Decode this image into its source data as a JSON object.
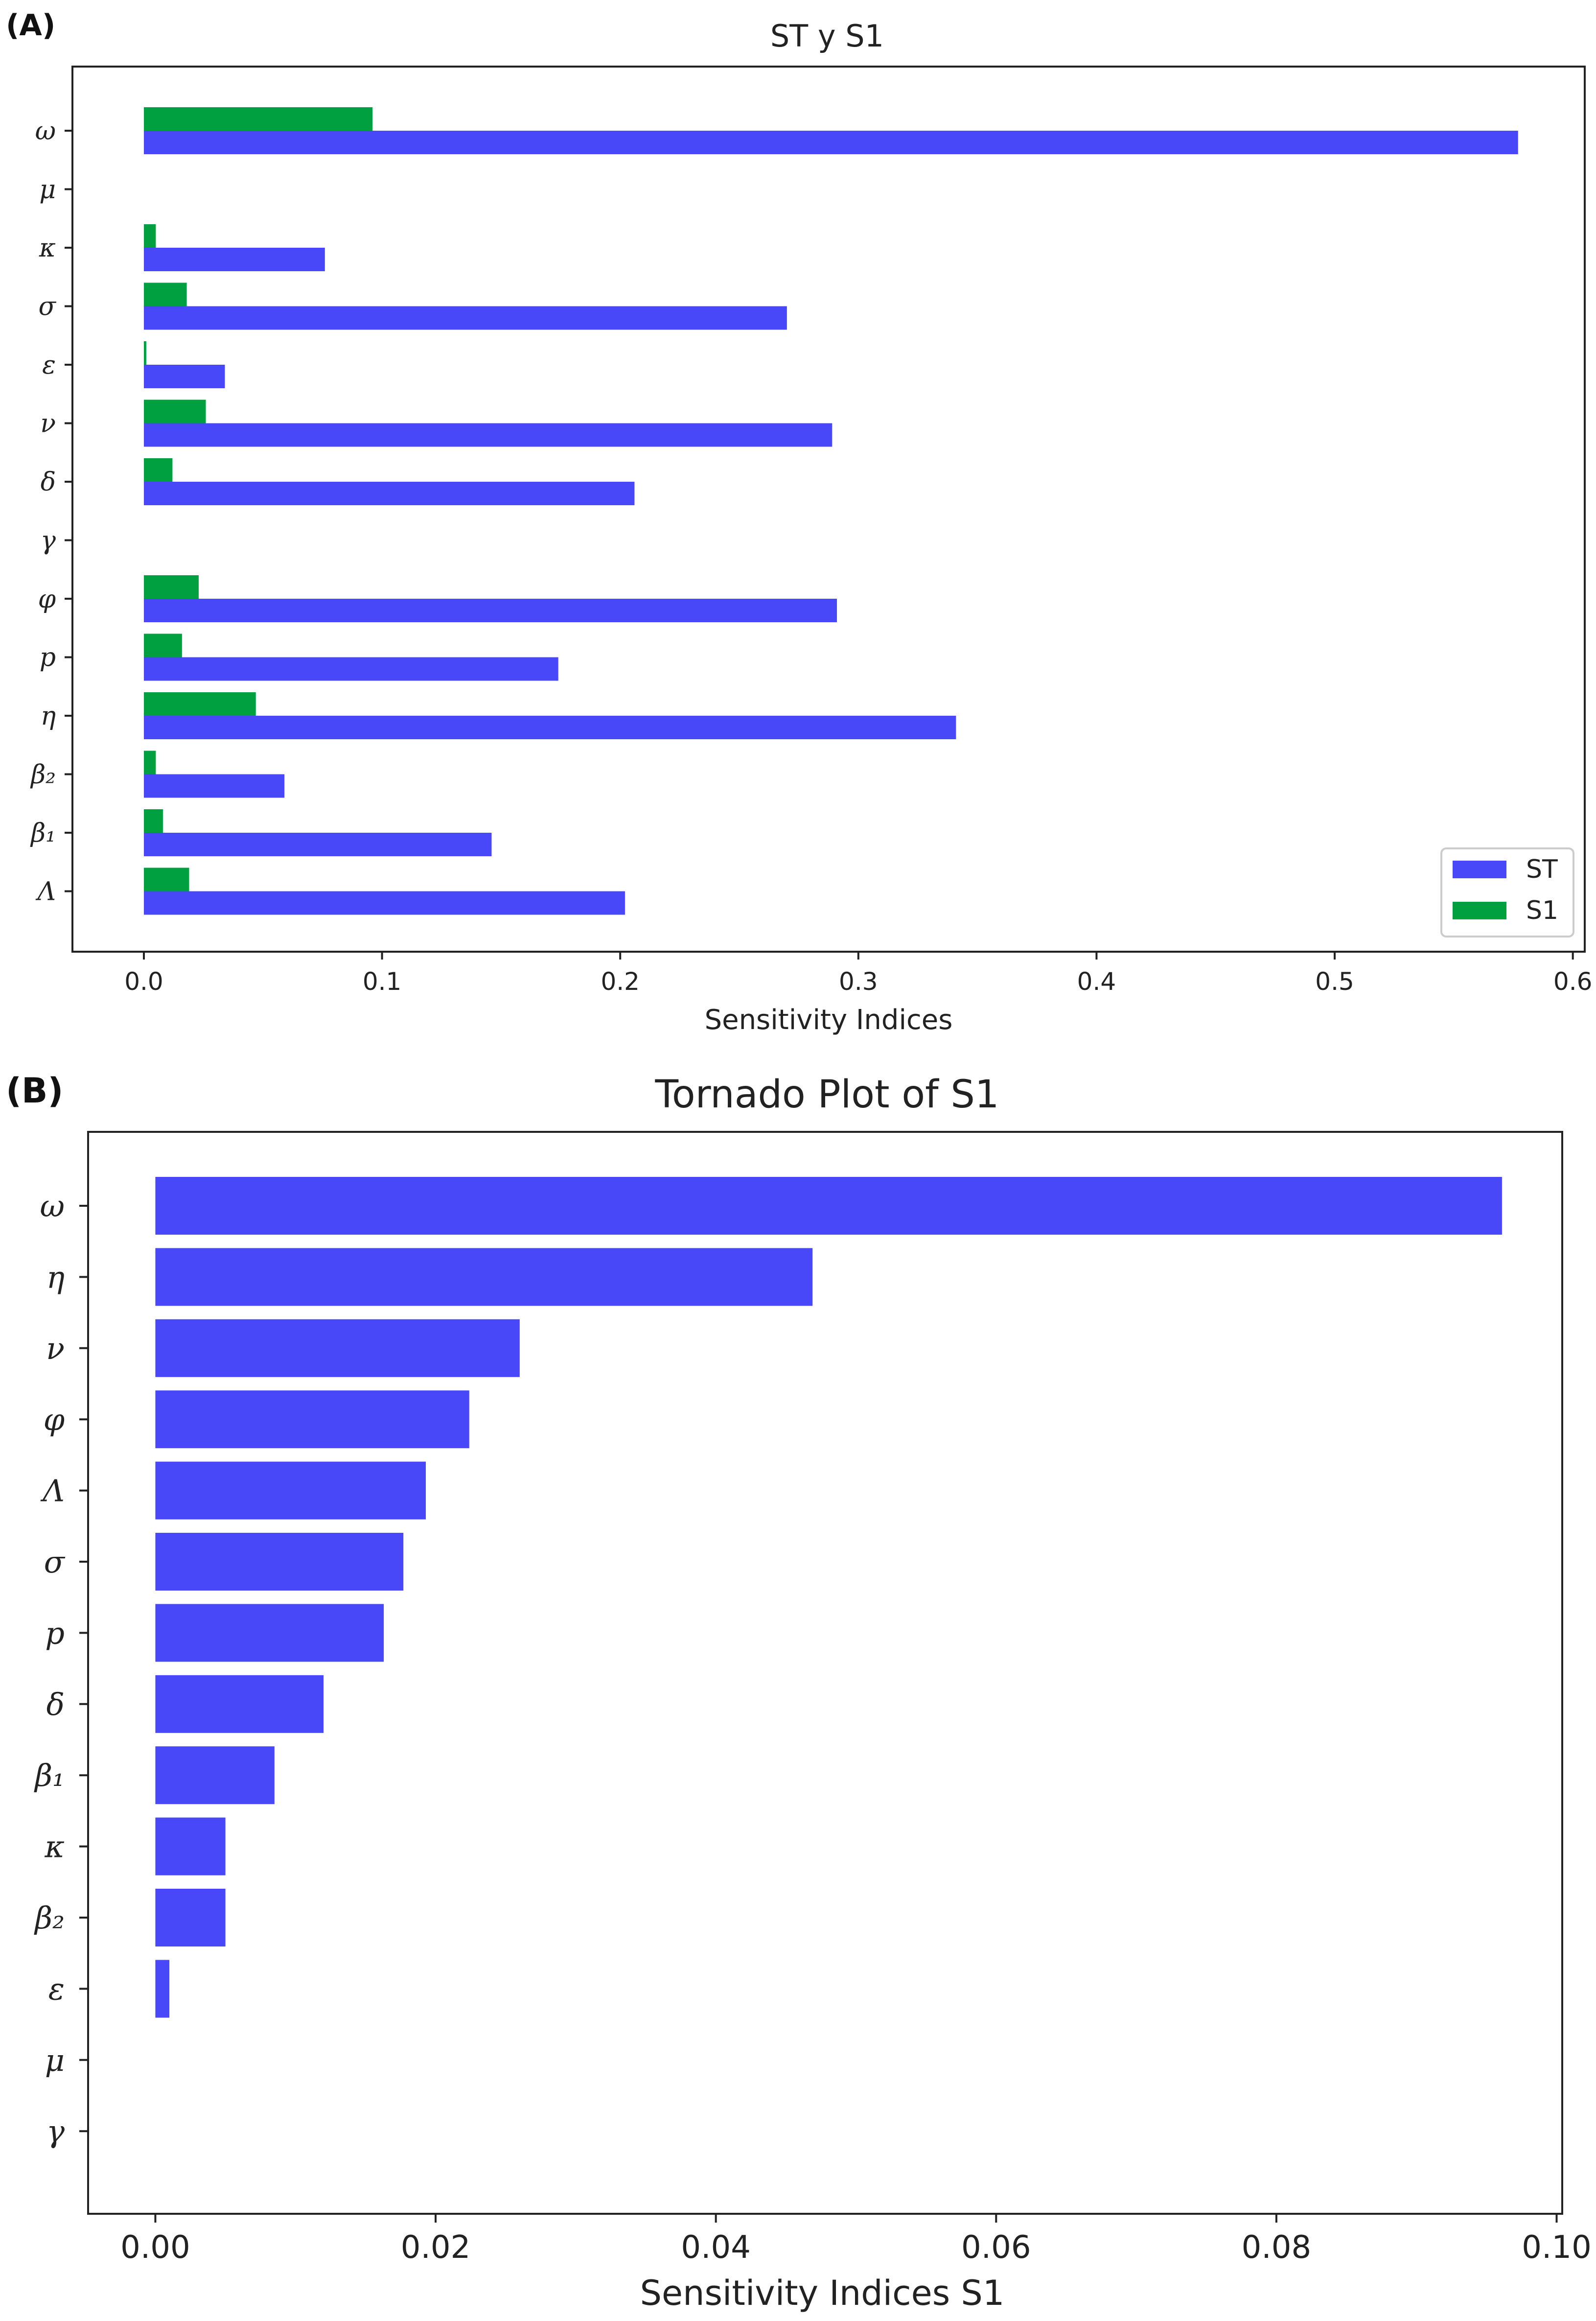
{
  "chart_data": [
    {
      "panel_label": "(A)",
      "type": "bar",
      "orientation": "horizontal",
      "title": "ST y S1",
      "xlabel": "Sensitivity Indices",
      "ylabel": "",
      "xlim": [
        -0.03,
        0.605
      ],
      "xticks": [
        "0.0",
        "0.1",
        "0.2",
        "0.3",
        "0.4",
        "0.5",
        "0.6"
      ],
      "xtick_values": [
        0.0,
        0.1,
        0.2,
        0.3,
        0.4,
        0.5,
        0.6
      ],
      "categories": [
        "ω",
        "μ",
        "κ",
        "σ",
        "ε",
        "ν",
        "δ",
        "γ",
        "φ",
        "p",
        "η",
        "β₂",
        "β₁",
        "Λ"
      ],
      "series": [
        {
          "name": "ST",
          "color": "#4848f8",
          "values": [
            0.577,
            0.0,
            0.076,
            0.27,
            0.034,
            0.289,
            0.206,
            0.0,
            0.291,
            0.174,
            0.341,
            0.059,
            0.146,
            0.202
          ]
        },
        {
          "name": "S1",
          "color": "#00a040",
          "values": [
            0.096,
            0.0,
            0.005,
            0.018,
            0.001,
            0.026,
            0.012,
            0.0,
            0.023,
            0.016,
            0.047,
            0.005,
            0.008,
            0.019
          ]
        }
      ],
      "legend": {
        "position": "bottom-right",
        "entries": [
          "ST",
          "S1"
        ]
      },
      "grid": false
    },
    {
      "panel_label": "(B)",
      "type": "bar",
      "orientation": "horizontal",
      "title": "Tornado Plot of S1",
      "xlabel": "Sensitivity Indices S1",
      "ylabel": "",
      "xlim": [
        -0.0048,
        0.1004
      ],
      "xticks": [
        "0.00",
        "0.02",
        "0.04",
        "0.06",
        "0.08",
        "0.10"
      ],
      "xtick_values": [
        0.0,
        0.02,
        0.04,
        0.06,
        0.08,
        0.1
      ],
      "categories": [
        "ω",
        "η",
        "ν",
        "φ",
        "Λ",
        "σ",
        "p",
        "δ",
        "β₁",
        "κ",
        "β₂",
        "ε",
        "μ",
        "γ"
      ],
      "series": [
        {
          "name": "S1",
          "color": "#4848f8",
          "values": [
            0.0961,
            0.0469,
            0.026,
            0.0224,
            0.0193,
            0.0177,
            0.0163,
            0.012,
            0.0085,
            0.005,
            0.005,
            0.001,
            0.0,
            0.0
          ]
        }
      ],
      "grid": false
    }
  ]
}
